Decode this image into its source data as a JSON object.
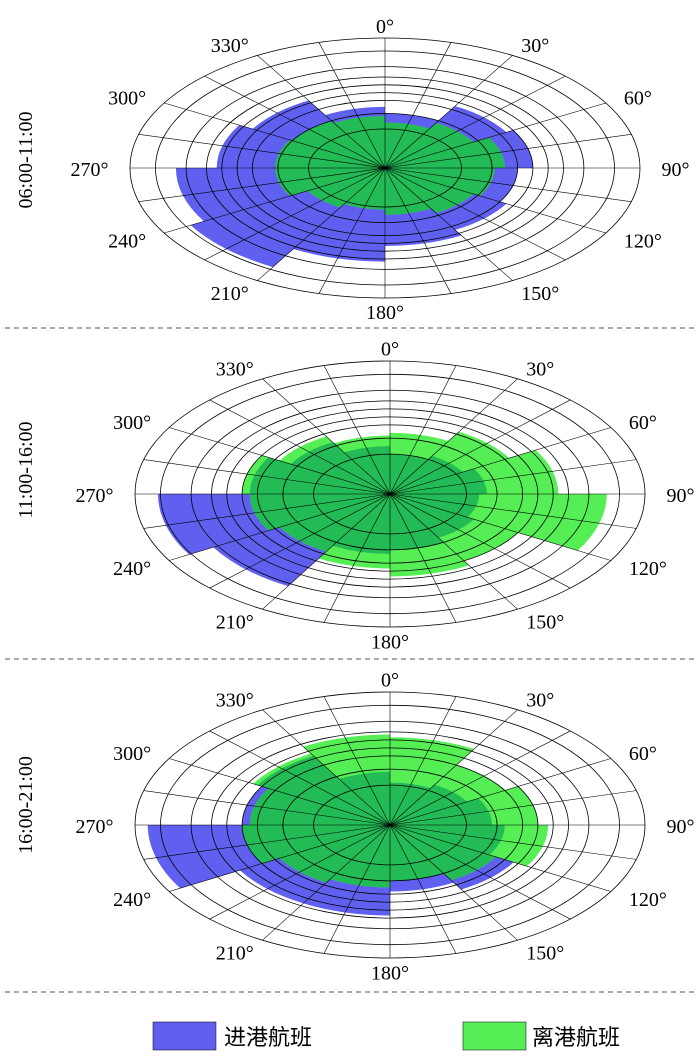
{
  "chart_data": [
    {
      "type": "polar-bar",
      "period_label": "06:00-11:00",
      "angle_ticks": [
        "0°",
        "30°",
        "60°",
        "90°",
        "120°",
        "150°",
        "180°",
        "210°",
        "240°",
        "270°",
        "300°",
        "330°"
      ],
      "series": [
        {
          "name": "进港航班",
          "color": "#6060f0",
          "values": [
            0.42,
            0.55,
            0.58,
            0.52,
            0.55,
            0.6,
            0.72,
            0.88,
            0.82,
            0.66,
            0.6,
            0.47
          ]
        },
        {
          "name": "离港航班",
          "color": "#55ee55",
          "values": [
            0.35,
            0.4,
            0.47,
            0.43,
            0.4,
            0.36,
            0.32,
            0.35,
            0.43,
            0.43,
            0.42,
            0.4
          ]
        }
      ]
    },
    {
      "type": "polar-bar",
      "period_label": "11:00-16:00",
      "angle_ticks": [
        "0°",
        "30°",
        "60°",
        "90°",
        "120°",
        "150°",
        "180°",
        "210°",
        "240°",
        "270°",
        "300°",
        "330°"
      ],
      "series": [
        {
          "name": "进港航班",
          "color": "#6060f0",
          "values": [
            0.3,
            0.33,
            0.38,
            0.35,
            0.38,
            0.42,
            0.45,
            0.8,
            0.91,
            0.55,
            0.45,
            0.36
          ]
        },
        {
          "name": "离港航班",
          "color": "#55ee55",
          "values": [
            0.46,
            0.54,
            0.66,
            0.85,
            0.58,
            0.62,
            0.56,
            0.5,
            0.55,
            0.58,
            0.5,
            0.44
          ]
        }
      ]
    },
    {
      "type": "polar-bar",
      "period_label": "16:00-21:00",
      "angle_ticks": [
        "0°",
        "30°",
        "60°",
        "90°",
        "120°",
        "150°",
        "180°",
        "210°",
        "240°",
        "270°",
        "300°",
        "330°"
      ],
      "series": [
        {
          "name": "进港航班",
          "color": "#6060f0",
          "values": [
            0.32,
            0.35,
            0.4,
            0.45,
            0.56,
            0.5,
            0.68,
            0.68,
            0.95,
            0.58,
            0.6,
            0.4
          ]
        },
        {
          "name": "离港航班",
          "color": "#55ee55",
          "values": [
            0.66,
            0.52,
            0.58,
            0.62,
            0.48,
            0.42,
            0.47,
            0.5,
            0.58,
            0.55,
            0.62,
            0.68
          ]
        }
      ]
    }
  ],
  "legend": {
    "arrival_label": "进港航班",
    "departure_label": "离港航班",
    "arrival_color": "#6060f0",
    "departure_color": "#55ee55",
    "overlap_color": "#22bb55"
  }
}
